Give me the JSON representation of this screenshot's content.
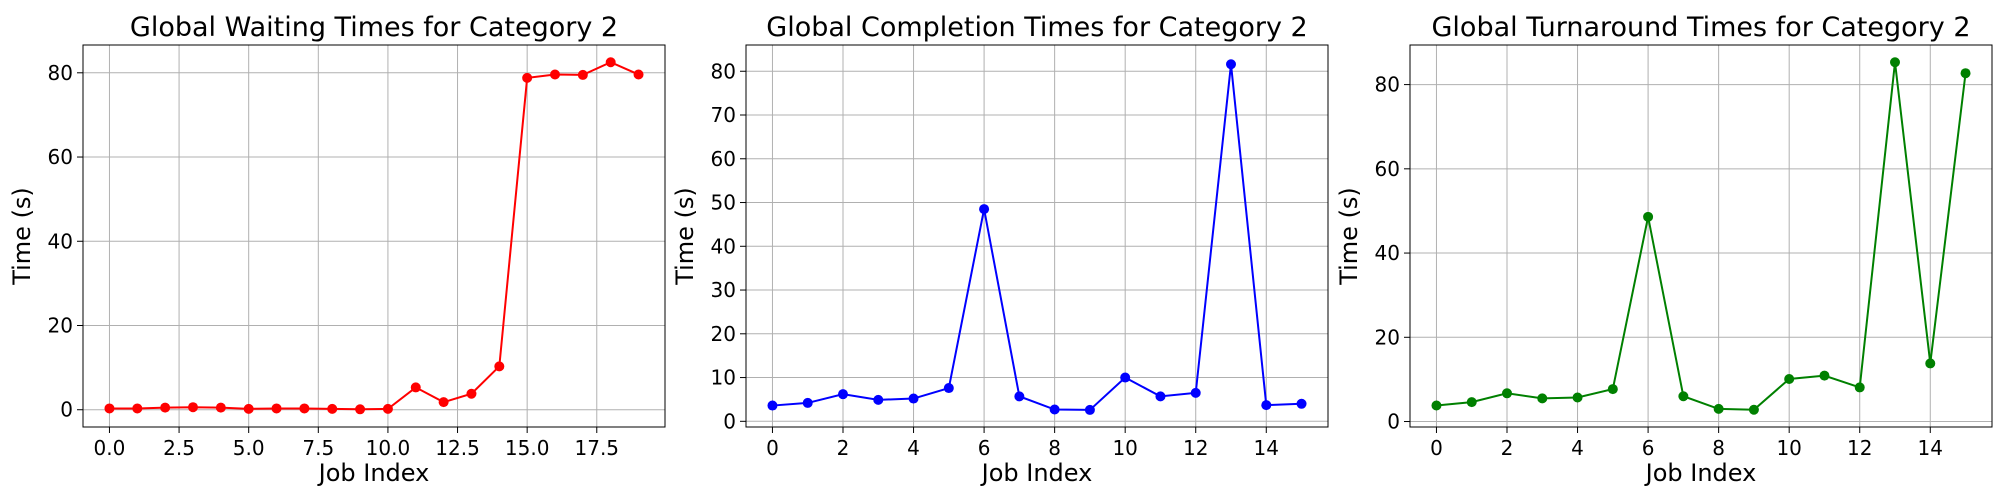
{
  "chart_data": [
    {
      "type": "line",
      "title": "Global Waiting Times for Category 2",
      "xlabel": "Job Index",
      "ylabel": "Time (s)",
      "x": [
        0,
        1,
        2,
        3,
        4,
        5,
        6,
        7,
        8,
        9,
        10,
        11,
        12,
        13,
        14,
        15,
        16,
        17,
        18,
        19
      ],
      "series": [
        {
          "values": [
            0.3,
            0.3,
            0.5,
            0.6,
            0.5,
            0.2,
            0.3,
            0.3,
            0.2,
            0.1,
            0.2,
            5.3,
            1.8,
            3.8,
            10.3,
            78.8,
            79.6,
            79.5,
            82.5,
            79.6
          ],
          "color": "#ff0000"
        }
      ],
      "xlim": [
        -0.95,
        19.95
      ],
      "ylim": [
        -4.1,
        86.6
      ],
      "xticks": [
        0,
        2.5,
        5,
        7.5,
        10,
        12.5,
        15,
        17.5
      ],
      "xtick_labels": [
        "0.0",
        "2.5",
        "5.0",
        "7.5",
        "10.0",
        "12.5",
        "15.0",
        "17.5"
      ],
      "yticks": [
        0,
        20,
        40,
        60,
        80
      ],
      "ytick_labels": [
        "0",
        "20",
        "40",
        "60",
        "80"
      ],
      "grid": true
    },
    {
      "type": "line",
      "title": "Global Completion Times for Category 2",
      "xlabel": "Job Index",
      "ylabel": "Time (s)",
      "x": [
        0,
        1,
        2,
        3,
        4,
        5,
        6,
        7,
        8,
        9,
        10,
        11,
        12,
        13,
        14,
        15
      ],
      "series": [
        {
          "values": [
            3.6,
            4.2,
            6.2,
            4.9,
            5.2,
            7.6,
            48.5,
            5.7,
            2.7,
            2.6,
            10.0,
            5.7,
            6.5,
            81.6,
            3.7,
            4.0
          ],
          "color": "#0000ff"
        }
      ],
      "xlim": [
        -0.75,
        15.75
      ],
      "ylim": [
        -1.3,
        86.0
      ],
      "xticks": [
        0,
        2,
        4,
        6,
        8,
        10,
        12,
        14
      ],
      "xtick_labels": [
        "0",
        "2",
        "4",
        "6",
        "8",
        "10",
        "12",
        "14"
      ],
      "yticks": [
        0,
        10,
        20,
        30,
        40,
        50,
        60,
        70,
        80
      ],
      "ytick_labels": [
        "0",
        "10",
        "20",
        "30",
        "40",
        "50",
        "60",
        "70",
        "80"
      ],
      "grid": true
    },
    {
      "type": "line",
      "title": "Global Turnaround Times for Category 2",
      "xlabel": "Job Index",
      "ylabel": "Time (s)",
      "x": [
        0,
        1,
        2,
        3,
        4,
        5,
        6,
        7,
        8,
        9,
        10,
        11,
        12,
        13,
        14,
        15
      ],
      "series": [
        {
          "values": [
            3.8,
            4.6,
            6.7,
            5.5,
            5.7,
            7.7,
            48.6,
            6.0,
            3.0,
            2.8,
            10.1,
            10.9,
            8.1,
            85.3,
            13.8,
            82.7
          ],
          "color": "#008000"
        }
      ],
      "xlim": [
        -0.75,
        15.75
      ],
      "ylim": [
        -1.3,
        89.4
      ],
      "xticks": [
        0,
        2,
        4,
        6,
        8,
        10,
        12,
        14
      ],
      "xtick_labels": [
        "0",
        "2",
        "4",
        "6",
        "8",
        "10",
        "12",
        "14"
      ],
      "yticks": [
        0,
        20,
        40,
        60,
        80
      ],
      "ytick_labels": [
        "0",
        "20",
        "40",
        "60",
        "80"
      ],
      "grid": true
    }
  ]
}
